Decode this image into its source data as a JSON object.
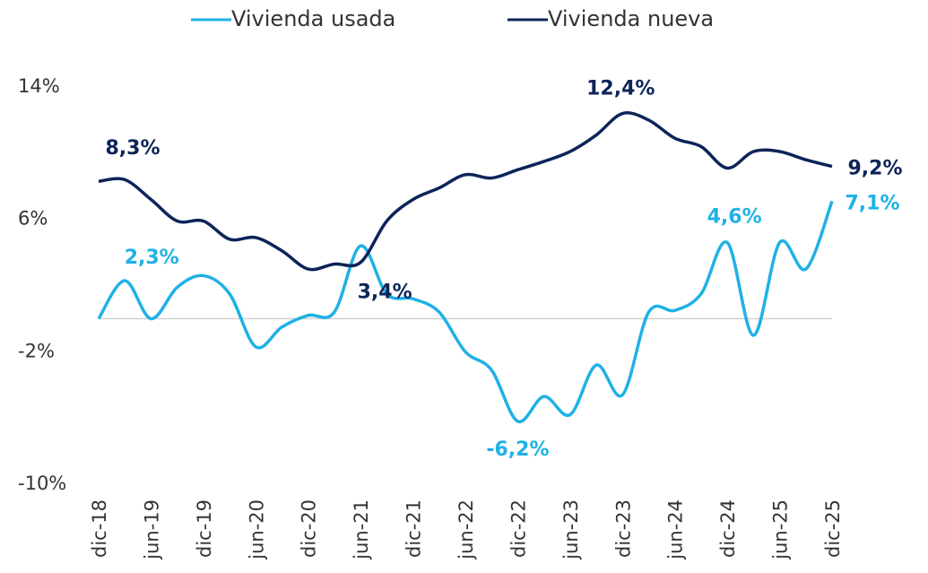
{
  "chart_data": {
    "type": "line",
    "categories": [
      "dic-18",
      null,
      "jun-19",
      null,
      "dic-19",
      null,
      "jun-20",
      null,
      "dic-20",
      null,
      "jun-21",
      null,
      "dic-21",
      null,
      "jun-22",
      null,
      "dic-22",
      null,
      "jun-23",
      null,
      "dic-23",
      null,
      "jun-24",
      null,
      "dic-24",
      null,
      "jun-25",
      null,
      "dic-25"
    ],
    "series": [
      {
        "name": "Vivienda usada",
        "color": "#1fb1e6",
        "values": [
          0.0,
          2.3,
          0.0,
          1.9,
          2.6,
          1.5,
          -1.7,
          -0.5,
          0.2,
          0.4,
          4.4,
          1.5,
          1.2,
          0.4,
          -2.0,
          -3.1,
          -6.2,
          -4.7,
          -5.8,
          -2.8,
          -4.6,
          0.4,
          0.5,
          1.5,
          4.6,
          -1.0,
          4.6,
          3.0,
          7.1
        ],
        "value_labels": [
          null,
          "2,3%",
          null,
          null,
          null,
          null,
          null,
          null,
          null,
          null,
          null,
          null,
          null,
          null,
          null,
          null,
          "-6,2%",
          null,
          null,
          null,
          null,
          null,
          null,
          null,
          "4,6%",
          null,
          null,
          null,
          "7,1%"
        ]
      },
      {
        "name": "Vivienda nueva",
        "color": "#0c2459",
        "values": [
          8.3,
          8.4,
          7.2,
          5.9,
          5.9,
          4.8,
          4.9,
          4.1,
          3.0,
          3.3,
          3.4,
          5.9,
          7.2,
          7.9,
          8.7,
          8.5,
          9.0,
          9.5,
          10.1,
          11.1,
          12.4,
          12.0,
          10.9,
          10.4,
          9.1,
          10.1,
          10.1,
          9.6,
          9.2
        ],
        "value_labels": [
          "8,3%",
          null,
          null,
          null,
          null,
          null,
          null,
          null,
          null,
          null,
          "3,4%",
          null,
          null,
          null,
          null,
          null,
          null,
          null,
          null,
          null,
          "12,4%",
          null,
          null,
          null,
          null,
          null,
          null,
          null,
          "9,2%"
        ]
      }
    ],
    "ylim": [
      -10,
      14
    ],
    "yticks": [
      {
        "value": -10,
        "label": "-10%"
      },
      {
        "value": -2,
        "label": "-2%"
      },
      {
        "value": 6,
        "label": "6%"
      },
      {
        "value": 14,
        "label": "14%"
      }
    ],
    "grid": false,
    "legend": "top"
  }
}
